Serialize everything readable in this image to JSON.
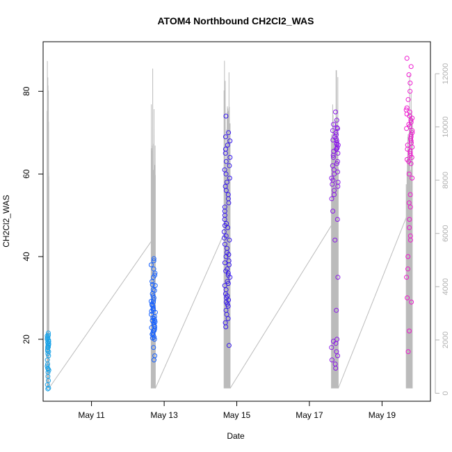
{
  "chart_data": {
    "type": "scatter",
    "title": "ATOM4 Northbound CH2Cl2_WAS",
    "xlabel": "Date",
    "ylabel": "CH2Cl2_WAS",
    "x_ticks": [
      "May 11",
      "May 13",
      "May 15",
      "May 17",
      "May 19"
    ],
    "y_ticks": [
      20,
      40,
      60,
      80
    ],
    "y2_ticks": [
      0,
      2000,
      4000,
      6000,
      8000,
      10000,
      12000
    ],
    "ylim": [
      5,
      92
    ],
    "y2lim": [
      -300,
      13200
    ],
    "xlim": [
      "2018-05-09T16:00",
      "2018-05-20T08:00"
    ],
    "grid": false,
    "legend": "none",
    "colors": {
      "flight1": "#1aa3e8",
      "flight2": "#1560ff",
      "flight3": "#3516ee",
      "flight4": "#8a16e8",
      "flight5": "#ee17cf",
      "altitude_line": "#bbbbbb"
    },
    "series": [
      {
        "date": "2018-05-09",
        "center_hour": 19.2,
        "span_hours": 1.2,
        "values": [
          18.5,
          19,
          19.5,
          20,
          20.5,
          21,
          18,
          17.5,
          19.2,
          18.8,
          17,
          16.5,
          18.2,
          19.8,
          20.3,
          15,
          14,
          13,
          12,
          12.5,
          11,
          10,
          9,
          8,
          8.2,
          16,
          17.2,
          18.6,
          19.4,
          21.5,
          13.5,
          12.8,
          20.8,
          18.1
        ]
      },
      {
        "date": "2018-05-12",
        "center_hour": 16.8,
        "span_hours": 2.8,
        "values": [
          20,
          21,
          22,
          23,
          24,
          25,
          26,
          27,
          28,
          29,
          30,
          31,
          32,
          33,
          34,
          35,
          36,
          37,
          38,
          39,
          39.5,
          21.5,
          22.5,
          23.5,
          24.5,
          25.5,
          26.5,
          27.5,
          28.5,
          29.5,
          15,
          16,
          18,
          20.5,
          22.8,
          24.2,
          26.8,
          28.2,
          30.5,
          31.8,
          33.2,
          35.5,
          21.2,
          23.1,
          25.2,
          27.3,
          29.2,
          20.3,
          22.1,
          24.6
        ]
      },
      {
        "date": "2018-05-14",
        "center_hour": 17.6,
        "span_hours": 4.0,
        "values": [
          24,
          25,
          26,
          27,
          28,
          29,
          30,
          31,
          32,
          33,
          34,
          35,
          36,
          37,
          38,
          39,
          40,
          41,
          42,
          43,
          44,
          45,
          46,
          47,
          48,
          49,
          50,
          51,
          52,
          53,
          54,
          55,
          56,
          57,
          58,
          59,
          60,
          61,
          62,
          63,
          64,
          65,
          66,
          67,
          68,
          69,
          70,
          74,
          18.5,
          23,
          28.5,
          29.5,
          30.5,
          33.5,
          35.5,
          36.5,
          38.5,
          40.5,
          44.5,
          47.5
        ]
      },
      {
        "date": "2018-05-17",
        "center_hour": 16.8,
        "span_hours": 4.5,
        "values": [
          54,
          55,
          56,
          57,
          58,
          59,
          60,
          61,
          62,
          63,
          64,
          65,
          66,
          67,
          68,
          69,
          70,
          71,
          72,
          73,
          75,
          13,
          14,
          15,
          16,
          17,
          18,
          19,
          19.5,
          20,
          27,
          35,
          44,
          49,
          51,
          57.5,
          58.5,
          60.5,
          62.5,
          64.5,
          65.5,
          66.5,
          67.5,
          68.5,
          69.5,
          70.5,
          71.2,
          66.2,
          67.2,
          68.2
        ]
      },
      {
        "date": "2018-05-19",
        "center_hour": 18.0,
        "span_hours": 4.0,
        "values": [
          88,
          86,
          84,
          82,
          80,
          78,
          76,
          75,
          74,
          73,
          72,
          71,
          70,
          69,
          68,
          67,
          66,
          65,
          64,
          63,
          60,
          59,
          55,
          53,
          52,
          49,
          47,
          45,
          44,
          40,
          37,
          35,
          30,
          29,
          22,
          17,
          75.5,
          74.5,
          73.5,
          72.5,
          71.5,
          70.5,
          69.5,
          68.5,
          67.5,
          66.5,
          65.5,
          64.5,
          63.5,
          62.5
        ]
      }
    ]
  }
}
